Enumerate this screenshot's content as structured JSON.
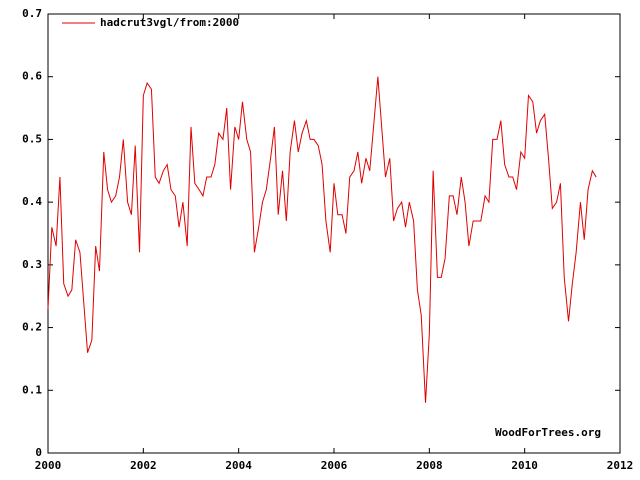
{
  "chart_data": {
    "type": "line",
    "annotations": [
      "WoodForTrees.org"
    ],
    "xlim": [
      2000,
      2012
    ],
    "xticks": [
      2000,
      2002,
      2004,
      2006,
      2008,
      2010,
      2012
    ],
    "ylim": [
      0,
      0.7
    ],
    "yticks": [
      0,
      0.1,
      0.2,
      0.3,
      0.4,
      0.5,
      0.6,
      0.7
    ],
    "grid": false,
    "legend": "top-left",
    "x": [
      2000,
      2000.08,
      2000.17,
      2000.25,
      2000.33,
      2000.42,
      2000.5,
      2000.58,
      2000.67,
      2000.75,
      2000.83,
      2000.92,
      2001,
      2001.08,
      2001.17,
      2001.25,
      2001.33,
      2001.42,
      2001.5,
      2001.58,
      2001.67,
      2001.75,
      2001.83,
      2001.92,
      2002,
      2002.08,
      2002.17,
      2002.25,
      2002.33,
      2002.42,
      2002.5,
      2002.58,
      2002.67,
      2002.75,
      2002.83,
      2002.92,
      2003,
      2003.08,
      2003.17,
      2003.25,
      2003.33,
      2003.42,
      2003.5,
      2003.58,
      2003.67,
      2003.75,
      2003.83,
      2003.92,
      2004,
      2004.08,
      2004.17,
      2004.25,
      2004.33,
      2004.42,
      2004.5,
      2004.58,
      2004.67,
      2004.75,
      2004.83,
      2004.92,
      2005,
      2005.08,
      2005.17,
      2005.25,
      2005.33,
      2005.42,
      2005.5,
      2005.58,
      2005.67,
      2005.75,
      2005.83,
      2005.92,
      2006,
      2006.08,
      2006.17,
      2006.25,
      2006.33,
      2006.42,
      2006.5,
      2006.58,
      2006.67,
      2006.75,
      2006.83,
      2006.92,
      2007,
      2007.08,
      2007.17,
      2007.25,
      2007.33,
      2007.42,
      2007.5,
      2007.58,
      2007.67,
      2007.75,
      2007.83,
      2007.92,
      2008,
      2008.08,
      2008.17,
      2008.25,
      2008.33,
      2008.42,
      2008.5,
      2008.58,
      2008.67,
      2008.75,
      2008.83,
      2008.92,
      2009,
      2009.08,
      2009.17,
      2009.25,
      2009.33,
      2009.42,
      2009.5,
      2009.58,
      2009.67,
      2009.75,
      2009.83,
      2009.92,
      2010,
      2010.08,
      2010.17,
      2010.25,
      2010.33,
      2010.42,
      2010.5,
      2010.58,
      2010.67,
      2010.75,
      2010.83,
      2010.92,
      2011,
      2011.08,
      2011.17,
      2011.25,
      2011.33,
      2011.42,
      2011.5
    ],
    "series": [
      {
        "name": "hadcrut3vgl/from:2000",
        "color": "#e00000",
        "values": [
          0.23,
          0.36,
          0.33,
          0.44,
          0.27,
          0.25,
          0.26,
          0.34,
          0.32,
          0.24,
          0.16,
          0.18,
          0.33,
          0.29,
          0.48,
          0.42,
          0.4,
          0.41,
          0.44,
          0.5,
          0.4,
          0.38,
          0.49,
          0.32,
          0.57,
          0.59,
          0.58,
          0.44,
          0.43,
          0.45,
          0.46,
          0.42,
          0.41,
          0.36,
          0.4,
          0.33,
          0.52,
          0.43,
          0.42,
          0.41,
          0.44,
          0.44,
          0.46,
          0.51,
          0.5,
          0.55,
          0.42,
          0.52,
          0.5,
          0.56,
          0.5,
          0.48,
          0.32,
          0.36,
          0.4,
          0.42,
          0.47,
          0.52,
          0.38,
          0.45,
          0.37,
          0.48,
          0.53,
          0.48,
          0.51,
          0.53,
          0.5,
          0.5,
          0.49,
          0.46,
          0.37,
          0.32,
          0.43,
          0.38,
          0.38,
          0.35,
          0.44,
          0.45,
          0.48,
          0.43,
          0.47,
          0.45,
          0.52,
          0.6,
          0.52,
          0.44,
          0.47,
          0.37,
          0.39,
          0.4,
          0.36,
          0.4,
          0.37,
          0.26,
          0.22,
          0.08,
          0.19,
          0.45,
          0.28,
          0.28,
          0.31,
          0.41,
          0.41,
          0.38,
          0.44,
          0.4,
          0.33,
          0.37,
          0.37,
          0.37,
          0.41,
          0.4,
          0.5,
          0.5,
          0.53,
          0.46,
          0.44,
          0.44,
          0.42,
          0.48,
          0.47,
          0.57,
          0.56,
          0.51,
          0.53,
          0.54,
          0.47,
          0.39,
          0.4,
          0.43,
          0.28,
          0.21,
          0.27,
          0.32,
          0.4,
          0.34,
          0.42,
          0.45,
          0.44
        ]
      }
    ]
  }
}
